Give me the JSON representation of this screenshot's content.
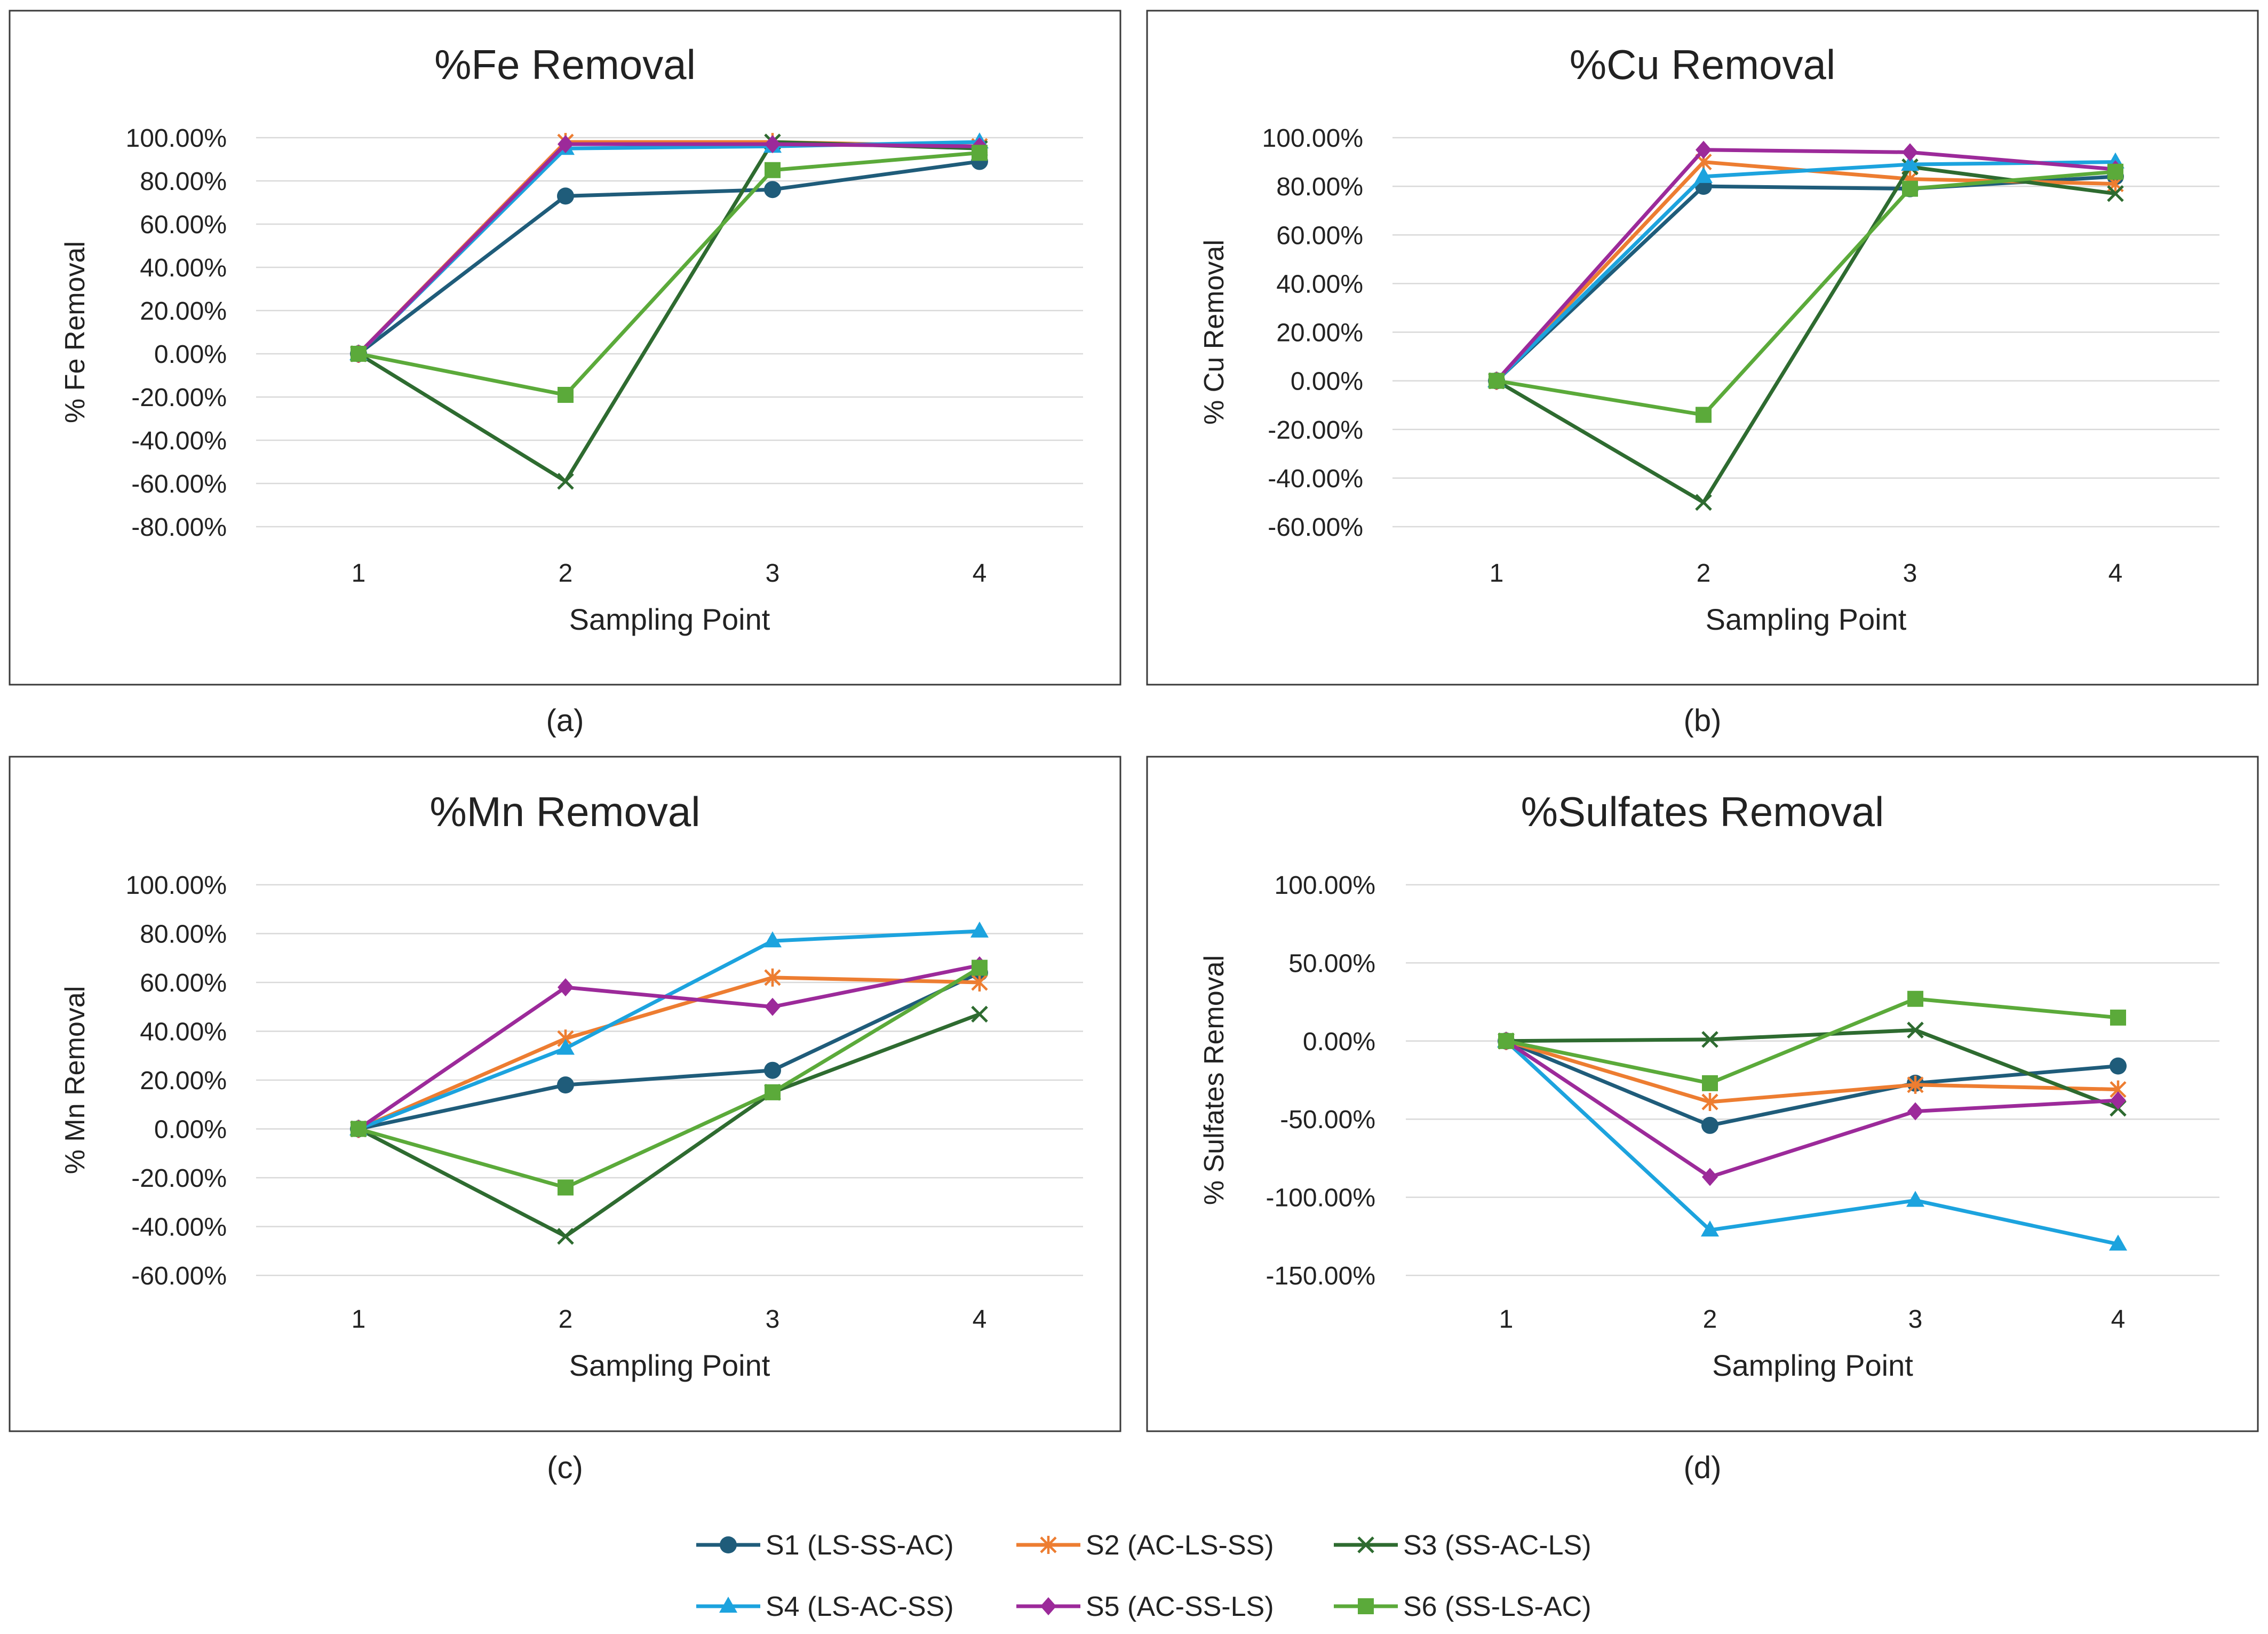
{
  "series": [
    {
      "id": "s1",
      "name": "S1 (LS-SS-AC)",
      "color": "#1F5C7A",
      "marker": "circle"
    },
    {
      "id": "s2",
      "name": "S2 (AC-LS-SS)",
      "color": "#ED7D31",
      "marker": "star"
    },
    {
      "id": "s3",
      "name": "S3 (SS-AC-LS)",
      "color": "#2E6B30",
      "marker": "x"
    },
    {
      "id": "s4",
      "name": "S4 (LS-AC-SS)",
      "color": "#1CA3DE",
      "marker": "triangle"
    },
    {
      "id": "s5",
      "name": "S5 (AC-SS-LS)",
      "color": "#9C2A9A",
      "marker": "diamond"
    },
    {
      "id": "s6",
      "name": "S6 (SS-LS-AC)",
      "color": "#5BAA3A",
      "marker": "square"
    }
  ],
  "chart_data": [
    {
      "type": "line",
      "title": "%Fe Removal",
      "xlabel": "Sampling Point",
      "ylabel": "% Fe Removal",
      "caption": "(a)",
      "categories": [
        "1",
        "2",
        "3",
        "4"
      ],
      "ylim": [
        -80,
        100
      ],
      "yticks": [
        100,
        80,
        60,
        40,
        20,
        0,
        -20,
        -40,
        -60,
        -80
      ],
      "ytick_labels": [
        "100.00%",
        "80.00%",
        "60.00%",
        "40.00%",
        "20.00%",
        "0.00%",
        "-20.00%",
        "-40.00%",
        "-60.00%",
        "-80.00%"
      ],
      "series": [
        {
          "name": "S1 (LS-SS-AC)",
          "values": [
            0,
            73,
            76,
            89
          ]
        },
        {
          "name": "S2 (AC-LS-SS)",
          "values": [
            0,
            98,
            98,
            96
          ]
        },
        {
          "name": "S3 (SS-AC-LS)",
          "values": [
            0,
            -59,
            98,
            95
          ]
        },
        {
          "name": "S4 (LS-AC-SS)",
          "values": [
            0,
            95,
            96,
            98
          ]
        },
        {
          "name": "S5 (AC-SS-LS)",
          "values": [
            0,
            97,
            97,
            96
          ]
        },
        {
          "name": "S6 (SS-LS-AC)",
          "values": [
            0,
            -19,
            85,
            93
          ]
        }
      ]
    },
    {
      "type": "line",
      "title": "%Cu Removal",
      "xlabel": "Sampling Point",
      "ylabel": "% Cu Removal",
      "caption": "(b)",
      "categories": [
        "1",
        "2",
        "3",
        "4"
      ],
      "ylim": [
        -60,
        100
      ],
      "yticks": [
        100,
        80,
        60,
        40,
        20,
        0,
        -20,
        -40,
        -60
      ],
      "ytick_labels": [
        "100.00%",
        "80.00%",
        "60.00%",
        "40.00%",
        "20.00%",
        "0.00%",
        "-20.00%",
        "-40.00%",
        "-60.00%"
      ],
      "series": [
        {
          "name": "S1 (LS-SS-AC)",
          "values": [
            0,
            80,
            79,
            84
          ]
        },
        {
          "name": "S2 (AC-LS-SS)",
          "values": [
            0,
            90,
            83,
            81
          ]
        },
        {
          "name": "S3 (SS-AC-LS)",
          "values": [
            0,
            -50,
            88,
            77
          ]
        },
        {
          "name": "S4 (LS-AC-SS)",
          "values": [
            0,
            84,
            89,
            90
          ]
        },
        {
          "name": "S5 (AC-SS-LS)",
          "values": [
            0,
            95,
            94,
            87
          ]
        },
        {
          "name": "S6 (SS-LS-AC)",
          "values": [
            0,
            -14,
            79,
            86
          ]
        }
      ]
    },
    {
      "type": "line",
      "title": "%Mn Removal",
      "xlabel": "Sampling Point",
      "ylabel": "% Mn Removal",
      "caption": "(c)",
      "categories": [
        "1",
        "2",
        "3",
        "4"
      ],
      "ylim": [
        -60,
        100
      ],
      "yticks": [
        100,
        80,
        60,
        40,
        20,
        0,
        -20,
        -40,
        -60
      ],
      "ytick_labels": [
        "100.00%",
        "80.00%",
        "60.00%",
        "40.00%",
        "20.00%",
        "0.00%",
        "-20.00%",
        "-40.00%",
        "-60.00%"
      ],
      "series": [
        {
          "name": "S1 (LS-SS-AC)",
          "values": [
            0,
            18,
            24,
            64
          ]
        },
        {
          "name": "S2 (AC-LS-SS)",
          "values": [
            0,
            37,
            62,
            60
          ]
        },
        {
          "name": "S3 (SS-AC-LS)",
          "values": [
            0,
            -44,
            15,
            47
          ]
        },
        {
          "name": "S4 (LS-AC-SS)",
          "values": [
            0,
            33,
            77,
            81
          ]
        },
        {
          "name": "S5 (AC-SS-LS)",
          "values": [
            0,
            58,
            50,
            67
          ]
        },
        {
          "name": "S6 (SS-LS-AC)",
          "values": [
            0,
            -24,
            15,
            66
          ]
        }
      ]
    },
    {
      "type": "line",
      "title": "%Sulfates Removal",
      "xlabel": "Sampling Point",
      "ylabel": "% Sulfates Removal",
      "caption": "(d)",
      "categories": [
        "1",
        "2",
        "3",
        "4"
      ],
      "ylim": [
        -150,
        100
      ],
      "yticks": [
        100,
        50,
        0,
        -50,
        -100,
        -150
      ],
      "ytick_labels": [
        "100.00%",
        "50.00%",
        "0.00%",
        "-50.00%",
        "-100.00%",
        "-150.00%"
      ],
      "series": [
        {
          "name": "S1 (LS-SS-AC)",
          "values": [
            0,
            -54,
            -27,
            -16
          ]
        },
        {
          "name": "S2 (AC-LS-SS)",
          "values": [
            0,
            -39,
            -28,
            -31
          ]
        },
        {
          "name": "S3 (SS-AC-LS)",
          "values": [
            0,
            1,
            7,
            -43
          ]
        },
        {
          "name": "S4 (LS-AC-SS)",
          "values": [
            0,
            -121,
            -102,
            -130
          ]
        },
        {
          "name": "S5 (AC-SS-LS)",
          "values": [
            0,
            -87,
            -45,
            -38
          ]
        },
        {
          "name": "S6 (SS-LS-AC)",
          "values": [
            0,
            -27,
            27,
            15
          ]
        }
      ]
    }
  ]
}
